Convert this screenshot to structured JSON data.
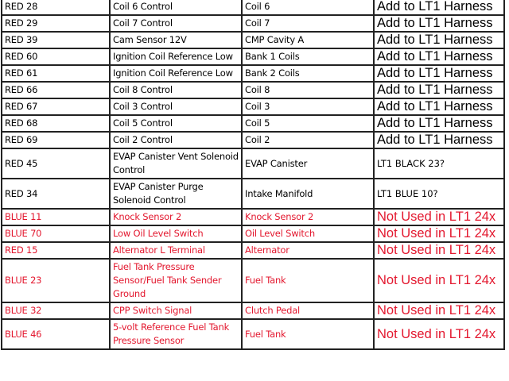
{
  "table": {
    "colors": {
      "normal": "#000000",
      "red": "#e3172e"
    },
    "rows": [
      {
        "pin": "RED 28",
        "function": "Coil 6 Control",
        "location": "Coil 6",
        "note": "Add to LT1 Harness",
        "color": "normal"
      },
      {
        "pin": "RED 29",
        "function": "Coil 7 Control",
        "location": "Coil 7",
        "note": "Add to LT1 Harness",
        "color": "normal"
      },
      {
        "pin": "RED 39",
        "function": "Cam Sensor 12V",
        "location": "CMP Cavity A",
        "note": "Add to LT1 Harness",
        "color": "normal"
      },
      {
        "pin": "RED 60",
        "function": "Ignition Coil Reference Low",
        "location": "Bank 1 Coils",
        "note": "Add to LT1 Harness",
        "color": "normal"
      },
      {
        "pin": "RED 61",
        "function": "Ignition Coil Reference Low",
        "location": "Bank 2 Coils",
        "note": "Add to LT1 Harness",
        "color": "normal"
      },
      {
        "pin": "RED 66",
        "function": "Coil 8 Control",
        "location": "Coil 8",
        "note": "Add to LT1 Harness",
        "color": "normal"
      },
      {
        "pin": "RED 67",
        "function": "Coil 3 Control",
        "location": "Coil 3",
        "note": "Add to LT1 Harness",
        "color": "normal"
      },
      {
        "pin": "RED 68",
        "function": "Coil 5 Control",
        "location": "Coil 5",
        "note": "Add to LT1 Harness",
        "color": "normal"
      },
      {
        "pin": "RED 69",
        "function": "Coil 2 Control",
        "location": "Coil 2",
        "note": "Add to LT1 Harness",
        "color": "normal"
      },
      {
        "pin": "RED 45",
        "function": "EVAP Canister Vent Solenoid Control",
        "location": "EVAP Canister",
        "note": "LT1 BLACK 23?",
        "color": "normal"
      },
      {
        "pin": "RED 34",
        "function": "EVAP Canister Purge Solenoid Control",
        "location": "Intake Manifold",
        "note": "LT1 BLUE 10?",
        "color": "normal"
      },
      {
        "pin": "BLUE 11",
        "function": "Knock Sensor 2",
        "location": "Knock Sensor 2",
        "note": "Not Used in LT1 24x",
        "color": "red"
      },
      {
        "pin": "BLUE 70",
        "function": "Low Oil Level Switch",
        "location": "Oil Level Switch",
        "note": "Not Used in LT1 24x",
        "color": "red"
      },
      {
        "pin": "RED 15",
        "function": "Alternator L Terminal",
        "location": "Alternator",
        "note": "Not Used in LT1 24x",
        "color": "red"
      },
      {
        "pin": "BLUE 23",
        "function": "Fuel Tank Pressure Sensor/Fuel Tank Sender Ground",
        "location": "Fuel Tank",
        "note": "Not Used in LT1 24x",
        "color": "red"
      },
      {
        "pin": "BLUE 32",
        "function": "CPP Switch Signal",
        "location": "Clutch Pedal",
        "note": "Not Used in LT1 24x",
        "color": "red"
      },
      {
        "pin": "BLUE 46",
        "function": "5-volt Reference Fuel Tank Pressure Sensor",
        "location": "Fuel Tank",
        "note": "Not Used in LT1 24x",
        "color": "red"
      }
    ]
  }
}
